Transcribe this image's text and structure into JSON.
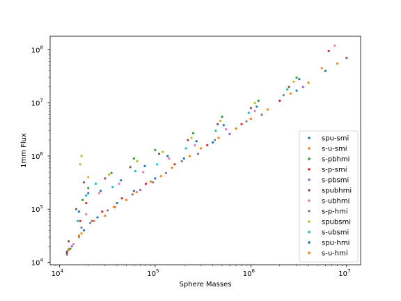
{
  "chart_data": {
    "type": "scatter",
    "xscale": "log",
    "yscale": "log",
    "xlabel": "Sphere Masses",
    "ylabel": "1mm Flux",
    "xlim": [
      8000,
      14000000
    ],
    "ylim": [
      9000,
      180000000
    ],
    "x_ticks": [
      {
        "value": 10000,
        "base": "10",
        "exp": "4"
      },
      {
        "value": 100000,
        "base": "10",
        "exp": "5"
      },
      {
        "value": 1000000,
        "base": "10",
        "exp": "6"
      },
      {
        "value": 10000000,
        "base": "10",
        "exp": "7"
      }
    ],
    "y_ticks": [
      {
        "value": 10000,
        "base": "10",
        "exp": "4"
      },
      {
        "value": 100000,
        "base": "10",
        "exp": "5"
      },
      {
        "value": 1000000,
        "base": "10",
        "exp": "6"
      },
      {
        "value": 10000000,
        "base": "10",
        "exp": "7"
      },
      {
        "value": 100000000,
        "base": "10",
        "exp": "8"
      }
    ],
    "legend_position": "lower right",
    "series": [
      {
        "name": "spu-smi",
        "color": "#1f77b4",
        "points": [
          [
            12000,
            16000
          ],
          [
            18000,
            40000
          ],
          [
            25000,
            70000
          ],
          [
            40000,
            130000
          ],
          [
            60000,
            220000
          ],
          [
            100000,
            380000
          ],
          [
            200000,
            900000
          ],
          [
            400000,
            1800000
          ],
          [
            1000000,
            5000000
          ],
          [
            3000000,
            17000000
          ],
          [
            6000000,
            40000000
          ]
        ]
      },
      {
        "name": "s-u-smi",
        "color": "#ff7f0e",
        "points": [
          [
            12500,
            17000
          ],
          [
            17000,
            35000
          ],
          [
            30000,
            75000
          ],
          [
            50000,
            150000
          ],
          [
            90000,
            330000
          ],
          [
            150000,
            600000
          ],
          [
            300000,
            1400000
          ],
          [
            700000,
            3300000
          ],
          [
            1500000,
            7500000
          ],
          [
            4000000,
            24000000
          ],
          [
            8000000,
            55000000
          ]
        ]
      },
      {
        "name": "s-pbhmi",
        "color": "#2ca02c",
        "points": [
          [
            13000,
            18000
          ],
          [
            17500,
            150000
          ],
          [
            20000,
            250000
          ],
          [
            35000,
            480000
          ],
          [
            60000,
            900000
          ],
          [
            100000,
            1300000
          ],
          [
            250000,
            2700000
          ],
          [
            500000,
            5500000
          ],
          [
            1200000,
            11000000
          ],
          [
            3000000,
            30000000
          ]
        ]
      },
      {
        "name": "s-p-smi",
        "color": "#d62728",
        "points": [
          [
            12000,
            15000
          ],
          [
            16500,
            60000
          ],
          [
            19000,
            130000
          ],
          [
            28000,
            90000
          ],
          [
            45000,
            160000
          ],
          [
            80000,
            300000
          ],
          [
            160000,
            700000
          ],
          [
            350000,
            1600000
          ],
          [
            800000,
            4000000
          ],
          [
            2000000,
            11000000
          ],
          [
            6500000,
            95000000
          ]
        ]
      },
      {
        "name": "s-pbsmi",
        "color": "#9467bd",
        "points": [
          [
            13500,
            20000
          ],
          [
            17000,
            45000
          ],
          [
            22000,
            60000
          ],
          [
            38000,
            110000
          ],
          [
            70000,
            230000
          ],
          [
            130000,
            480000
          ],
          [
            280000,
            1100000
          ],
          [
            600000,
            2600000
          ],
          [
            1300000,
            6000000
          ],
          [
            3500000,
            20000000
          ]
        ]
      },
      {
        "name": "spubhmi",
        "color": "#8c564b",
        "points": [
          [
            12500,
            25000
          ],
          [
            15000,
            100000
          ],
          [
            18000,
            320000
          ],
          [
            30000,
            380000
          ],
          [
            55000,
            620000
          ],
          [
            110000,
            1100000
          ],
          [
            220000,
            2000000
          ],
          [
            450000,
            4000000
          ],
          [
            1000000,
            8000000
          ],
          [
            2500000,
            20000000
          ],
          [
            10000000,
            70000000
          ]
        ]
      },
      {
        "name": "s-ubhmi",
        "color": "#e377c2",
        "points": [
          [
            14000,
            22000
          ],
          [
            19000,
            80000
          ],
          [
            26000,
            200000
          ],
          [
            42000,
            300000
          ],
          [
            75000,
            500000
          ],
          [
            140000,
            900000
          ],
          [
            260000,
            1600000
          ],
          [
            550000,
            3200000
          ],
          [
            1100000,
            7000000
          ],
          [
            7500000,
            120000000
          ]
        ]
      },
      {
        "name": "s-p-hmi",
        "color": "#7f7f7f",
        "points": [
          [
            12000,
            14000
          ],
          [
            16000,
            30000
          ],
          [
            21000,
            55000
          ],
          [
            32000,
            95000
          ],
          [
            58000,
            190000
          ],
          [
            95000,
            320000
          ],
          [
            190000,
            800000
          ],
          [
            420000,
            2000000
          ],
          [
            900000,
            4500000
          ],
          [
            2200000,
            14000000
          ]
        ]
      },
      {
        "name": "spubsmi",
        "color": "#bcbd22",
        "points": [
          [
            17000,
            1000000
          ],
          [
            16500,
            700000
          ],
          [
            20000,
            400000
          ],
          [
            33000,
            450000
          ],
          [
            65000,
            800000
          ],
          [
            120000,
            1200000
          ],
          [
            240000,
            2200000
          ],
          [
            480000,
            4600000
          ],
          [
            1100000,
            10000000
          ],
          [
            2800000,
            25000000
          ]
        ]
      },
      {
        "name": "s-ubsmi",
        "color": "#17becf",
        "points": [
          [
            15500,
            60000
          ],
          [
            19000,
            180000
          ],
          [
            24000,
            300000
          ],
          [
            36000,
            260000
          ],
          [
            62000,
            520000
          ],
          [
            105000,
            700000
          ],
          [
            210000,
            1400000
          ],
          [
            430000,
            3000000
          ],
          [
            950000,
            6500000
          ],
          [
            2400000,
            18000000
          ]
        ]
      },
      {
        "name": "spu-hmi",
        "color": "#1f77b4",
        "points": [
          [
            16000,
            90000
          ],
          [
            20000,
            200000
          ],
          [
            27000,
            220000
          ],
          [
            44000,
            350000
          ],
          [
            78000,
            650000
          ],
          [
            135000,
            1000000
          ],
          [
            270000,
            1900000
          ],
          [
            520000,
            3800000
          ],
          [
            1150000,
            8500000
          ],
          [
            3200000,
            28000000
          ]
        ]
      },
      {
        "name": "s-u-hmi",
        "color": "#ff7f0e",
        "points": [
          [
            12500,
            18000
          ],
          [
            16000,
            32000
          ],
          [
            23000,
            60000
          ],
          [
            37000,
            110000
          ],
          [
            64000,
            210000
          ],
          [
            115000,
            420000
          ],
          [
            230000,
            1000000
          ],
          [
            460000,
            2200000
          ],
          [
            1000000,
            5000000
          ],
          [
            2600000,
            15000000
          ],
          [
            5500000,
            45000000
          ]
        ]
      }
    ]
  }
}
